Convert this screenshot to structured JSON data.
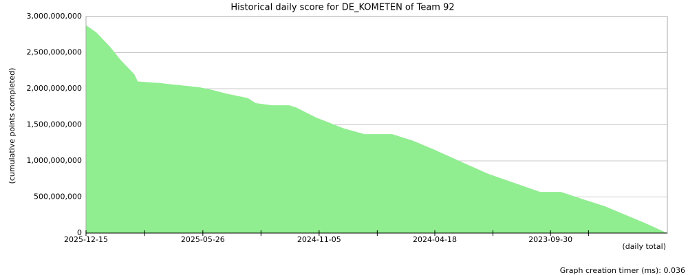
{
  "chart_data": {
    "type": "area",
    "title": "Historical daily score for DE_KOMETEN of Team 92",
    "y_label": "(cumulative points completed)",
    "x_label": "(daily total)",
    "footer": "Graph creation timer (ms): 0.036",
    "color": "#90ee90",
    "grid": true,
    "x": [
      "2025-12-15",
      "2025-11-27",
      "2025-11-03",
      "2025-10-16",
      "2025-09-22",
      "2025-09-16",
      "2025-08-11",
      "2025-07-07",
      "2025-06-01",
      "2025-05-08",
      "2025-04-14",
      "2025-03-21",
      "2025-03-09",
      "2025-02-23",
      "2025-01-26",
      "2024-12-27",
      "2024-12-15",
      "2024-11-10",
      "2024-09-23",
      "2024-08-18",
      "2024-07-01",
      "2024-05-26",
      "2024-04-20",
      "2024-03-04",
      "2024-01-16",
      "2023-11-23",
      "2023-10-18",
      "2023-09-12",
      "2023-08-01",
      "2023-06-27",
      "2023-05-22",
      "2023-04-16",
      "2023-03-17",
      "2023-03-11"
    ],
    "values": [
      2880000000,
      2780000000,
      2580000000,
      2400000000,
      2200000000,
      2100000000,
      2080000000,
      2050000000,
      2020000000,
      1980000000,
      1930000000,
      1890000000,
      1870000000,
      1800000000,
      1770000000,
      1770000000,
      1740000000,
      1600000000,
      1450000000,
      1370000000,
      1370000000,
      1280000000,
      1160000000,
      990000000,
      820000000,
      670000000,
      570000000,
      570000000,
      460000000,
      370000000,
      250000000,
      130000000,
      20000000,
      0
    ],
    "xlim": [
      "2025-12-15",
      "2023-03-11"
    ],
    "xticks": [
      "2025-12-15",
      "2025-05-26",
      "2024-11-05",
      "2024-04-18",
      "2023-09-30"
    ],
    "xminorticks": [
      "2025-09-04",
      "2025-02-14",
      "2024-07-27",
      "2024-01-08",
      "2023-07-26"
    ],
    "ylim": [
      0,
      3000000000
    ],
    "yticks": [
      0,
      {
        "value": 500000000,
        "label": "500,000,000"
      },
      {
        "value": 1000000000,
        "label": "1,000,000,000"
      },
      {
        "value": 1500000000,
        "label": "1,500,000,000"
      },
      {
        "value": 2000000000,
        "label": "2,000,000,000"
      },
      {
        "value": 2500000000,
        "label": "2,500,000,000"
      },
      {
        "value": 3000000000,
        "label": "3,000,000,000"
      }
    ]
  }
}
